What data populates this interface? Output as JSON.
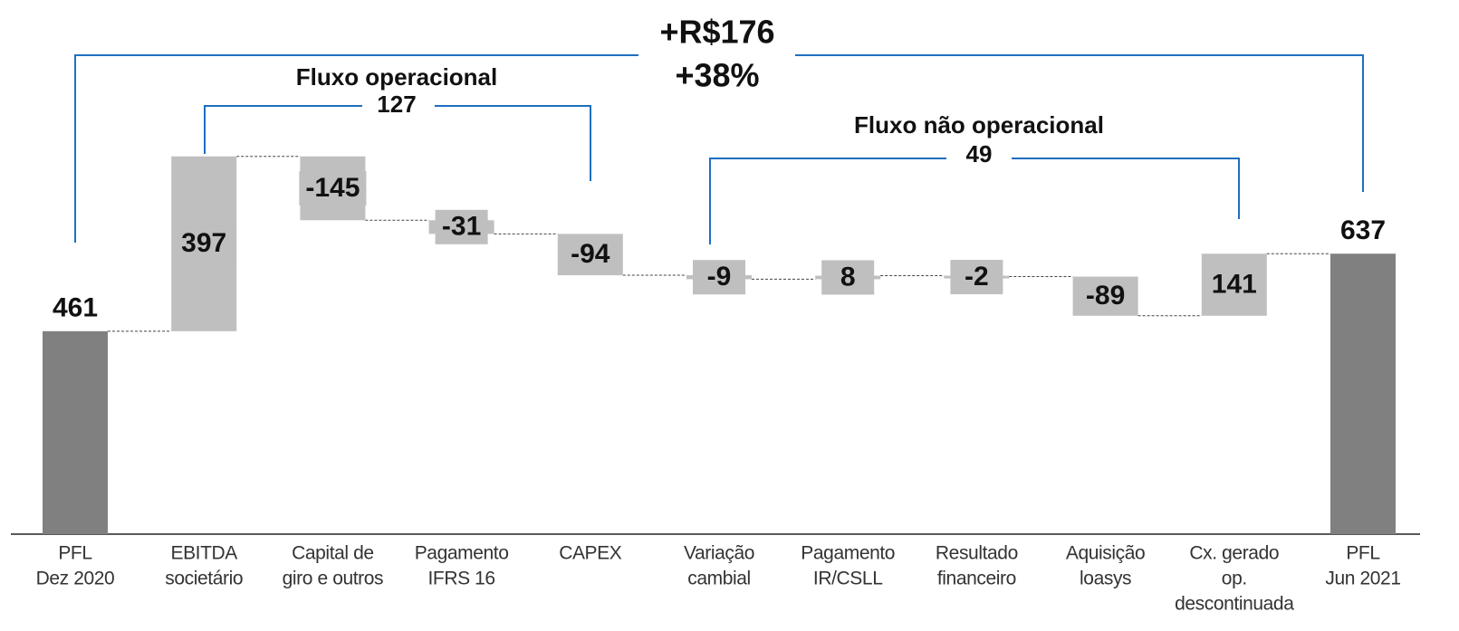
{
  "chart_data": {
    "type": "waterfall",
    "categories": [
      [
        "PFL",
        "Dez 2020"
      ],
      [
        "EBITDA",
        "societário"
      ],
      [
        "Capital de",
        "giro e outros"
      ],
      [
        "Pagamento",
        "IFRS 16"
      ],
      [
        "CAPEX"
      ],
      [
        "Variação",
        "cambial"
      ],
      [
        "Pagamento",
        "IR/CSLL"
      ],
      [
        "Resultado",
        "financeiro"
      ],
      [
        "Aquisição",
        "loasys"
      ],
      [
        "Cx. gerado",
        "op.",
        "descontinuada"
      ],
      [
        "PFL",
        "Jun 2021"
      ]
    ],
    "values": [
      461,
      397,
      -145,
      -31,
      -94,
      -9,
      8,
      -2,
      -89,
      141,
      637
    ],
    "measure": [
      "absolute",
      "relative",
      "relative",
      "relative",
      "relative",
      "relative",
      "relative",
      "relative",
      "relative",
      "relative",
      "absolute"
    ],
    "total_color": "#808080",
    "delta_color": "#bfbfbf",
    "bracket_color": "#1f6fbf",
    "brackets": [
      {
        "lines": [
          "+R$176",
          "+38%"
        ]
      },
      {
        "lines": [
          "Fluxo operacional",
          "127"
        ]
      },
      {
        "lines": [
          "Fluxo não operacional",
          "49"
        ]
      }
    ]
  }
}
